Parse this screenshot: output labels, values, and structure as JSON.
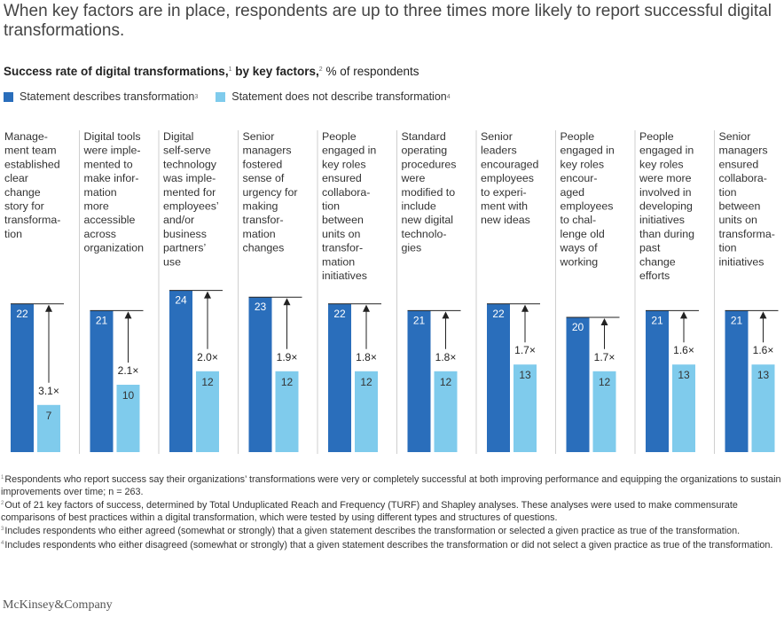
{
  "headline": "When key factors are in place, respondents are up to three times more likely to report successful digital transformations.",
  "subtitle": {
    "main": "Success rate of digital transformations,",
    "main_sup": "1",
    "by": " by key factors,",
    "by_sup": "2",
    "unit": " % of respondents"
  },
  "legend": [
    {
      "label": "Statement describes transformation",
      "sup": "3",
      "color": "#2a6ebb"
    },
    {
      "label": "Statement does not describe transformation",
      "sup": "4",
      "color": "#7fcbec"
    }
  ],
  "chart_data": {
    "type": "bar",
    "ylim": [
      0,
      30
    ],
    "categories": [
      [
        "Manage-",
        "ment team",
        "established",
        "clear",
        "change",
        "story for",
        "transforma-",
        "tion"
      ],
      [
        "Digital tools",
        "were imple-",
        "mented to",
        "make infor-",
        "mation",
        "more",
        "accessible",
        "across",
        "organization"
      ],
      [
        "Digital",
        "self-serve",
        "technology",
        "was imple-",
        "mented for",
        "employees’",
        "and/or",
        "business",
        "partners’",
        "use"
      ],
      [
        "Senior",
        "managers",
        "fostered",
        "sense of",
        "urgency for",
        "making",
        "transfor-",
        "mation",
        "changes"
      ],
      [
        "People",
        "engaged in",
        "key roles",
        "ensured",
        "collabora-",
        "tion",
        "between",
        "units on",
        "transfor-",
        "mation",
        "initiatives"
      ],
      [
        "Standard",
        "operating",
        "procedures",
        "were",
        "modified to",
        "include",
        "new digital",
        "technolo-",
        "gies"
      ],
      [
        "Senior",
        "leaders",
        "encouraged",
        "employees",
        "to experi-",
        "ment with",
        "new ideas"
      ],
      [
        "People",
        "engaged in",
        "key roles",
        "encour-",
        "aged",
        "employees",
        "to chal-",
        "lenge old",
        "ways of",
        "working"
      ],
      [
        "People",
        "engaged in",
        "key roles",
        "were more",
        "involved in",
        "developing",
        "initiatives",
        "than during",
        "past",
        "change",
        "efforts"
      ],
      [
        "Senior",
        "managers",
        "ensured",
        "collabora-",
        "tion",
        "between",
        "units on",
        "transforma-",
        "tion",
        "initiatives"
      ]
    ],
    "series": [
      {
        "name": "Statement describes transformation",
        "values": [
          22,
          21,
          24,
          23,
          22,
          21,
          22,
          20,
          21,
          21
        ]
      },
      {
        "name": "Statement does not describe transformation",
        "values": [
          7,
          10,
          12,
          12,
          12,
          12,
          13,
          12,
          13,
          13
        ]
      }
    ],
    "multipliers": [
      "3.1×",
      "2.1×",
      "2.0×",
      "1.9×",
      "1.8×",
      "1.8×",
      "1.7×",
      "1.7×",
      "1.6×",
      "1.6×"
    ],
    "colors": {
      "describes": "#2a6ebb",
      "not_describes": "#7fcbec",
      "separator": "#cfcfcf"
    }
  },
  "footnotes": [
    {
      "sup": "1",
      "text": "Respondents who report success say their organizations’ transformations were very or completely successful at both improving performance and equipping the organizations to sustain improvements over time; n = 263."
    },
    {
      "sup": "2",
      "text": "Out of 21 key factors of success, determined by Total Unduplicated Reach and Frequency (TURF) and Shapley analyses. These analyses were used to make commensurate comparisons of best practices within a digital transformation, which were tested by using different types and structures of questions."
    },
    {
      "sup": "3",
      "text": "Includes respondents who either agreed (somewhat or strongly) that a given statement describes the transformation or selected a given practice as true of the transformation."
    },
    {
      "sup": "4",
      "text": "Includes respondents who either disagreed (somewhat or strongly) that a given statement describes the transformation or did not select a given practice as true of the transformation."
    }
  ],
  "brand": "McKinsey&Company"
}
